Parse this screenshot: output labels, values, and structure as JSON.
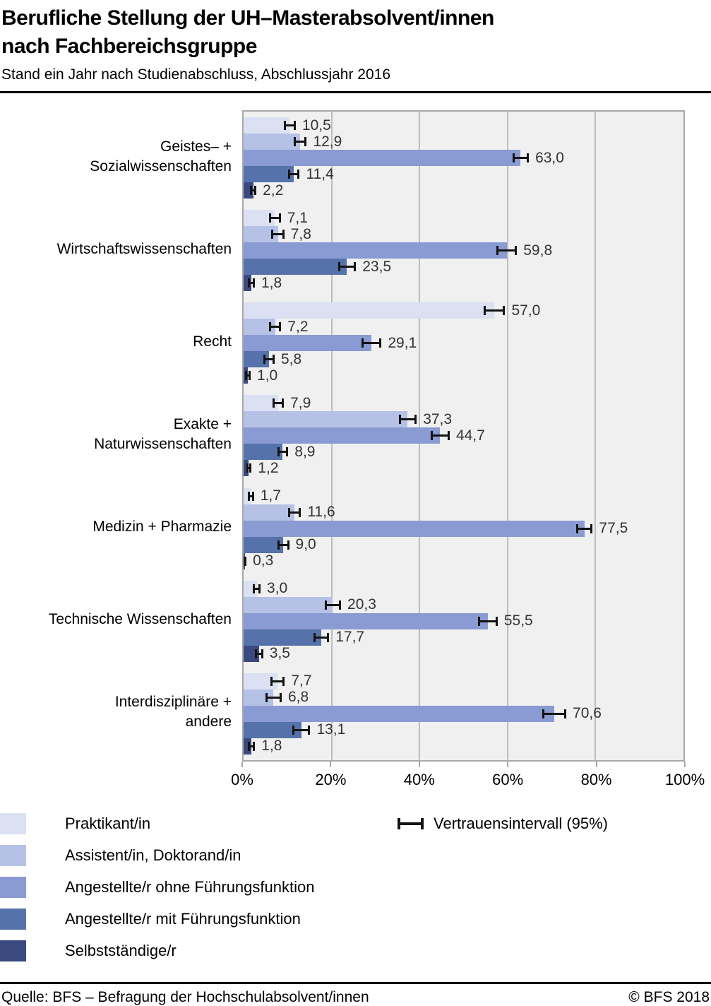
{
  "header": {
    "title_line1": "Berufliche Stellung der UH–Masterabsolvent/innen",
    "title_line2": "nach Fachbereichsgruppe",
    "subtitle": "Stand ein Jahr nach Studienabschluss, Abschlussjahr 2016"
  },
  "chart_data": {
    "type": "bar",
    "orientation": "horizontal",
    "unit": "%",
    "xlim": [
      0,
      100
    ],
    "grid": true,
    "x_ticks": [
      "0%",
      "20%",
      "40%",
      "60%",
      "80%",
      "100%"
    ],
    "x_tick_values": [
      0,
      20,
      40,
      60,
      80,
      100
    ],
    "plot_bg": "#f0f0f0",
    "grid_color": "#bdbdbd",
    "categories": [
      [
        "Geistes– +",
        "Sozialwissenschaften"
      ],
      [
        "Wirtschaftswissenschaften"
      ],
      [
        "Recht"
      ],
      [
        "Exakte +",
        "Naturwissenschaften"
      ],
      [
        "Medizin + Pharmazie"
      ],
      [
        "Technische Wissenschaften"
      ],
      [
        "Interdisziplinäre +",
        "andere"
      ]
    ],
    "series": [
      {
        "name": "Praktikant/in",
        "color": "#dbe0f2",
        "values": [
          10.5,
          7.1,
          57.0,
          7.9,
          1.7,
          3.0,
          7.7
        ],
        "ci_halfwidth": [
          1.2,
          1.2,
          2.3,
          1.1,
          0.5,
          0.7,
          1.5
        ]
      },
      {
        "name": "Assistent/in, Doktorand/in",
        "color": "#b6c1e6",
        "values": [
          12.9,
          7.8,
          7.2,
          37.3,
          11.6,
          20.3,
          6.8
        ],
        "ci_halfwidth": [
          1.3,
          1.3,
          1.2,
          1.9,
          1.3,
          1.7,
          1.7
        ]
      },
      {
        "name": "Angestellte/r ohne Führungsfunktion",
        "color": "#8a9ad2",
        "values": [
          63.0,
          59.8,
          29.1,
          44.7,
          77.5,
          55.5,
          70.6
        ],
        "ci_halfwidth": [
          1.7,
          2.2,
          2.1,
          2.0,
          1.7,
          2.1,
          2.6
        ]
      },
      {
        "name": "Angestellte/r mit Führungsfunktion",
        "color": "#5672aa",
        "values": [
          11.4,
          23.5,
          5.8,
          8.9,
          9.0,
          17.7,
          13.1
        ],
        "ci_halfwidth": [
          1.2,
          1.9,
          1.1,
          1.1,
          1.2,
          1.6,
          1.9
        ]
      },
      {
        "name": "Selbstständige/r",
        "color": "#3a4a80",
        "values": [
          2.2,
          1.8,
          1.0,
          1.2,
          0.3,
          3.5,
          1.8
        ],
        "ci_halfwidth": [
          0.55,
          0.6,
          0.45,
          0.45,
          0.2,
          0.8,
          0.65
        ]
      }
    ],
    "error_bar_label": "Vertrauensintervall (95%)"
  },
  "footer": {
    "source": "Quelle: BFS – Befragung der Hochschulabsolvent/innen",
    "copyright": "© BFS 2018"
  }
}
